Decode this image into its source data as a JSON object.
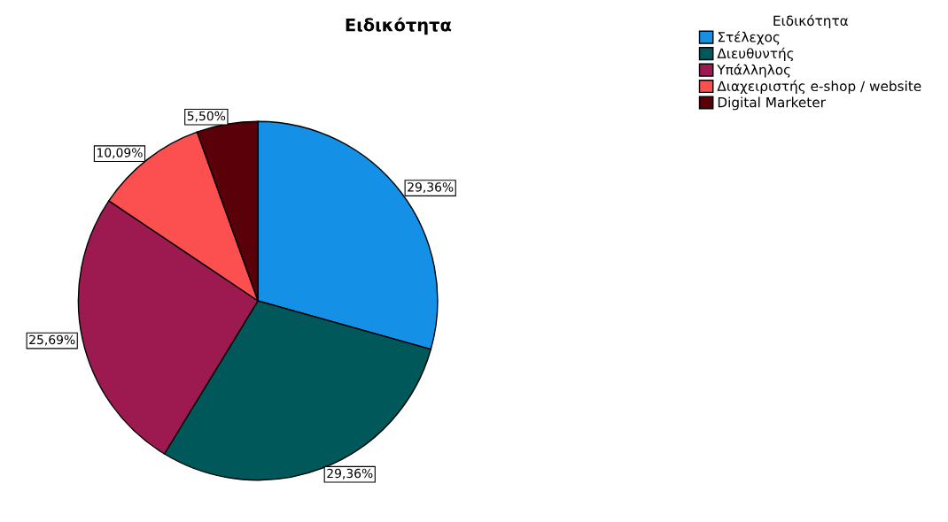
{
  "chart_data": {
    "type": "pie",
    "title": "Ειδικότητα",
    "legend_title": "Ειδικότητα",
    "legend": "top right",
    "categories": [
      "Στέλεχος",
      "Διευθυντής",
      "Υπάλληλος",
      "Διαχειριστής e-shop / website",
      "Digital Marketer"
    ],
    "values": [
      29.36,
      29.36,
      25.69,
      10.09,
      5.5
    ],
    "colors": [
      "#1490e6",
      "#00585a",
      "#9c1a4f",
      "#fc5050",
      "#5a0008"
    ],
    "value_labels": [
      "29,36%",
      "29,36%",
      "25,69%",
      "10,09%",
      "5,50%"
    ]
  }
}
